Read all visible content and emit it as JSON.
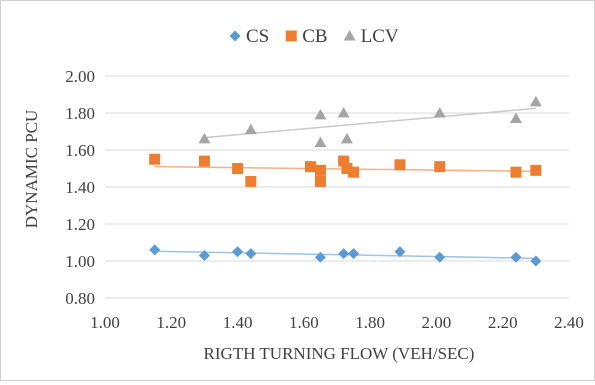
{
  "chart_data": {
    "type": "scatter",
    "xlabel": "RIGTH TURNING FLOW (VEH/SEC)",
    "ylabel": "DYNAMIC PCU",
    "xlim": [
      1.0,
      2.4
    ],
    "ylim": [
      0.8,
      2.0
    ],
    "xticks": [
      "1.00",
      "1.20",
      "1.40",
      "1.60",
      "1.80",
      "2.00",
      "2.20",
      "2.40"
    ],
    "yticks": [
      "0.80",
      "1.00",
      "1.20",
      "1.40",
      "1.60",
      "1.80",
      "2.00"
    ],
    "grid": "horizontal",
    "legend_position": "top",
    "trendlines": "linear",
    "series": [
      {
        "name": "CS",
        "marker": "diamond",
        "color": "#5b9bd5",
        "trend_color": "#9dc3e6",
        "points": [
          [
            1.15,
            1.06
          ],
          [
            1.3,
            1.03
          ],
          [
            1.4,
            1.05
          ],
          [
            1.44,
            1.04
          ],
          [
            1.65,
            1.02
          ],
          [
            1.72,
            1.04
          ],
          [
            1.75,
            1.04
          ],
          [
            1.89,
            1.05
          ],
          [
            2.01,
            1.02
          ],
          [
            2.24,
            1.02
          ],
          [
            2.3,
            1.0
          ]
        ]
      },
      {
        "name": "CB",
        "marker": "square",
        "color": "#ed7d31",
        "trend_color": "#f4b183",
        "points": [
          [
            1.15,
            1.55
          ],
          [
            1.3,
            1.54
          ],
          [
            1.4,
            1.5
          ],
          [
            1.44,
            1.43
          ],
          [
            1.62,
            1.51
          ],
          [
            1.65,
            1.49
          ],
          [
            1.65,
            1.43
          ],
          [
            1.72,
            1.54
          ],
          [
            1.73,
            1.5
          ],
          [
            1.75,
            1.48
          ],
          [
            1.89,
            1.52
          ],
          [
            2.01,
            1.51
          ],
          [
            2.24,
            1.48
          ],
          [
            2.3,
            1.49
          ]
        ]
      },
      {
        "name": "LCV",
        "marker": "triangle",
        "color": "#a5a5a5",
        "trend_color": "#c9c9c9",
        "points": [
          [
            1.3,
            1.66
          ],
          [
            1.44,
            1.71
          ],
          [
            1.65,
            1.79
          ],
          [
            1.65,
            1.64
          ],
          [
            1.72,
            1.8
          ],
          [
            1.73,
            1.66
          ],
          [
            2.01,
            1.8
          ],
          [
            2.24,
            1.77
          ],
          [
            2.3,
            1.86
          ]
        ]
      }
    ]
  }
}
